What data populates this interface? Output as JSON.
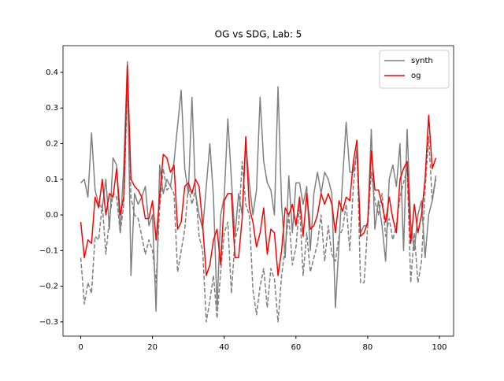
{
  "chart_data": {
    "type": "line",
    "title": "OG vs SDG, Lab: 5",
    "x": [
      0,
      1,
      2,
      3,
      4,
      5,
      6,
      7,
      8,
      9,
      10,
      11,
      12,
      13,
      14,
      15,
      16,
      17,
      18,
      19,
      20,
      21,
      22,
      23,
      24,
      25,
      26,
      27,
      28,
      29,
      30,
      31,
      32,
      33,
      34,
      35,
      36,
      37,
      38,
      39,
      40,
      41,
      42,
      43,
      44,
      45,
      46,
      47,
      48,
      49,
      50,
      51,
      52,
      53,
      54,
      55,
      56,
      57,
      58,
      59,
      60,
      61,
      62,
      63,
      64,
      65,
      66,
      67,
      68,
      69,
      70,
      71,
      72,
      73,
      74,
      75,
      76,
      77,
      78,
      79,
      80,
      81,
      82,
      83,
      84,
      85,
      86,
      87,
      88,
      89,
      90,
      91,
      92,
      93,
      94,
      95,
      96,
      97,
      98,
      99
    ],
    "series": [
      {
        "name": "synth",
        "color": "#808080",
        "dash": "solid",
        "values": [
          0.09,
          0.1,
          0.05,
          0.23,
          0.07,
          0.03,
          0.02,
          0.1,
          -0.04,
          0.16,
          0.14,
          -0.05,
          0.14,
          0.43,
          -0.17,
          0.06,
          0.03,
          0.05,
          0.08,
          -0.03,
          0.0,
          -0.27,
          0.14,
          0.06,
          0.1,
          0.08,
          0.15,
          0.25,
          0.35,
          0.13,
          0.06,
          0.33,
          0.06,
          0.0,
          -0.04,
          0.08,
          0.2,
          0.05,
          -0.26,
          0.0,
          0.05,
          0.27,
          0.1,
          -0.06,
          0.06,
          0.0,
          0.2,
          0.09,
          0.0,
          0.07,
          0.33,
          0.15,
          0.09,
          0.07,
          0.0,
          0.36,
          0.03,
          -0.12,
          0.11,
          -0.05,
          0.09,
          0.09,
          0.03,
          0.08,
          -0.1,
          0.06,
          0.12,
          0.06,
          0.12,
          0.1,
          0.06,
          -0.26,
          -0.08,
          0.1,
          0.26,
          0.12,
          0.12,
          0.18,
          -0.05,
          -0.03,
          -0.03,
          0.24,
          -0.04,
          0.04,
          -0.03,
          -0.13,
          0.1,
          0.14,
          0.08,
          0.2,
          -0.1,
          0.24,
          -0.02,
          -0.1,
          0.0,
          0.04,
          -0.12,
          0.0,
          0.04,
          0.11
        ]
      },
      {
        "color": "#808080",
        "dash": "dashed",
        "values": [
          -0.12,
          -0.25,
          -0.19,
          -0.22,
          -0.06,
          -0.07,
          0.03,
          -0.11,
          -0.01,
          0.06,
          0.05,
          -0.05,
          0.03,
          0.37,
          0.05,
          0.0,
          -0.01,
          -0.06,
          -0.11,
          -0.07,
          -0.1,
          -0.19,
          0.02,
          0.13,
          0.07,
          0.08,
          0.06,
          -0.16,
          -0.1,
          -0.04,
          0.08,
          0.03,
          0.07,
          -0.06,
          -0.1,
          -0.3,
          -0.24,
          -0.17,
          -0.29,
          -0.16,
          -0.05,
          -0.02,
          -0.22,
          -0.07,
          -0.03,
          0.15,
          0.03,
          0.0,
          -0.21,
          -0.28,
          -0.2,
          -0.15,
          -0.26,
          -0.15,
          -0.18,
          -0.3,
          -0.17,
          -0.09,
          0.0,
          -0.14,
          -0.09,
          0.03,
          -0.17,
          -0.05,
          -0.16,
          -0.12,
          -0.08,
          0.0,
          -0.13,
          -0.03,
          -0.11,
          -0.13,
          -0.06,
          -0.04,
          0.03,
          -0.1,
          0.08,
          0.19,
          -0.19,
          -0.19,
          -0.03,
          0.12,
          0.04,
          0.0,
          0.06,
          -0.06,
          -0.01,
          -0.07,
          -0.03,
          0.05,
          0.09,
          0.13,
          -0.19,
          -0.05,
          -0.19,
          -0.13,
          0.07,
          0.22,
          0.04,
          0.1
        ]
      },
      {
        "name": "og",
        "color": "#ff0000",
        "dash": "solid",
        "values": [
          -0.02,
          -0.12,
          -0.07,
          -0.08,
          0.05,
          0.02,
          0.1,
          0.0,
          0.06,
          0.05,
          0.13,
          0.0,
          0.05,
          0.42,
          0.1,
          0.08,
          0.07,
          0.05,
          -0.01,
          -0.01,
          0.04,
          -0.07,
          0.05,
          0.17,
          0.16,
          0.12,
          0.14,
          -0.04,
          -0.02,
          0.08,
          0.09,
          0.06,
          0.1,
          0.08,
          -0.03,
          -0.17,
          -0.14,
          -0.07,
          -0.04,
          -0.14,
          0.04,
          0.06,
          0.06,
          -0.12,
          -0.12,
          -0.01,
          0.22,
          0.02,
          -0.02,
          -0.09,
          -0.05,
          0.02,
          -0.11,
          -0.04,
          -0.05,
          -0.17,
          -0.1,
          0.02,
          0.0,
          0.03,
          -0.03,
          0.05,
          -0.06,
          0.06,
          -0.04,
          -0.03,
          0.0,
          0.06,
          0.03,
          0.06,
          0.03,
          -0.05,
          0.04,
          0.01,
          0.05,
          0.04,
          0.15,
          0.21,
          -0.06,
          -0.05,
          -0.02,
          0.18,
          0.07,
          0.07,
          0.03,
          -0.02,
          0.05,
          -0.01,
          -0.05,
          0.1,
          0.13,
          0.15,
          -0.08,
          0.03,
          -0.05,
          0.0,
          0.1,
          0.28,
          0.13,
          0.16
        ]
      }
    ],
    "xlim": [
      -4.95,
      103.95
    ],
    "xticks": [
      0,
      20,
      40,
      60,
      80,
      100
    ],
    "ylim": [
      -0.34,
      0.475
    ],
    "yticks": [
      {
        "value": -0.3,
        "label": "−0.3"
      },
      {
        "value": -0.2,
        "label": "−0.2"
      },
      {
        "value": -0.1,
        "label": "−0.1"
      },
      {
        "value": 0,
        "label": "0.0"
      },
      0.1,
      0.2,
      0.3,
      0.4
    ],
    "legend": "upper right"
  }
}
